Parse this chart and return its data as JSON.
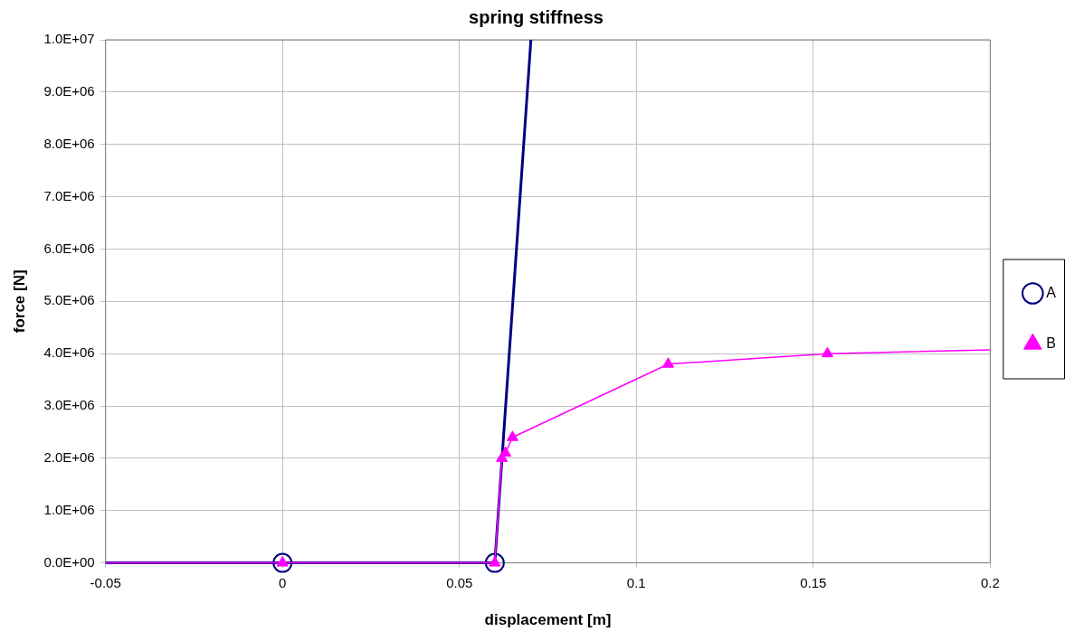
{
  "chart_data": {
    "type": "line",
    "title": "spring stiffness",
    "xlabel": "displacement [m]",
    "ylabel": "force [N]",
    "xlim": [
      -0.05,
      0.2
    ],
    "xticks": [
      -0.05,
      0,
      0.05,
      0.1,
      0.15,
      0.2
    ],
    "ylim": [
      0,
      10000000
    ],
    "yticks": [
      {
        "value": 0,
        "label": "0.0E+00"
      },
      {
        "value": 1000000,
        "label": "1.0E+06"
      },
      {
        "value": 2000000,
        "label": "2.0E+06"
      },
      {
        "value": 3000000,
        "label": "3.0E+06"
      },
      {
        "value": 4000000,
        "label": "4.0E+06"
      },
      {
        "value": 5000000,
        "label": "5.0E+06"
      },
      {
        "value": 6000000,
        "label": "6.0E+06"
      },
      {
        "value": 7000000,
        "label": "7.0E+06"
      },
      {
        "value": 8000000,
        "label": "8.0E+06"
      },
      {
        "value": 9000000,
        "label": "9.0E+06"
      },
      {
        "value": 10000000,
        "label": "1.0E+07"
      }
    ],
    "grid": true,
    "legend": "right",
    "series": [
      {
        "name": "A",
        "color": "#000080",
        "marker": "circle",
        "x": [
          -0.05,
          0,
          0.06,
          0.0702
        ],
        "values": [
          0,
          0,
          0,
          10000000
        ]
      },
      {
        "name": "B",
        "color": "#ff00ff",
        "marker": "triangle",
        "x": [
          -0.05,
          0,
          0.06,
          0.062,
          0.063,
          0.065,
          0.109,
          0.154,
          0.2
        ],
        "values": [
          0,
          0,
          0,
          2000000,
          2100000,
          2400000,
          3800000,
          4000000,
          4070000
        ]
      }
    ]
  }
}
